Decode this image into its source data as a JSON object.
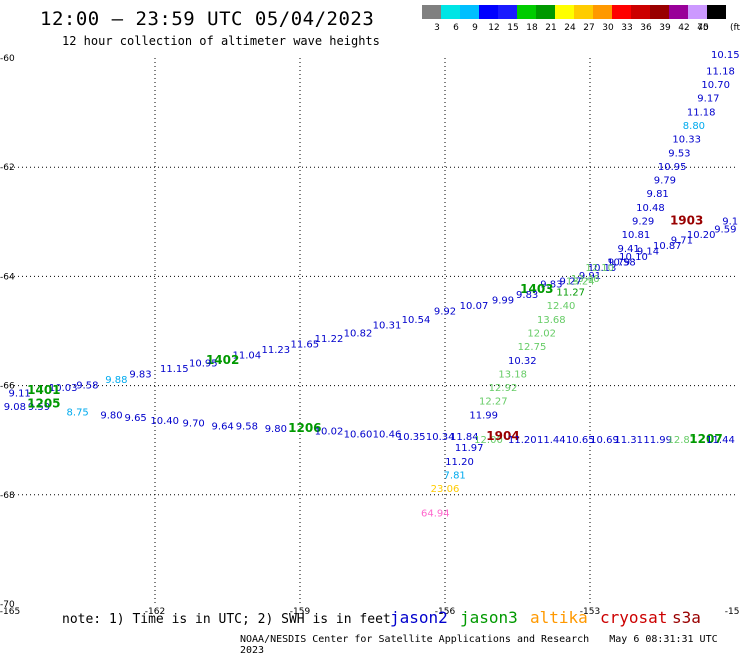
{
  "header": {
    "title": "12:00 – 23:59 UTC 05/04/2023",
    "subtitle": "12 hour collection of altimeter wave heights"
  },
  "colorbar": {
    "unit": "(ft)",
    "levels": [
      "3",
      "6",
      "9",
      "12",
      "15",
      "18",
      "21",
      "24",
      "27",
      "30",
      "33",
      "36",
      "39",
      "42",
      "45",
      "70"
    ],
    "colors": [
      "#808080",
      "#00e5e5",
      "#00bfff",
      "#0000ff",
      "#1a1aff",
      "#00cc00",
      "#009900",
      "#ffff00",
      "#ffcc00",
      "#ff9900",
      "#ff0000",
      "#cc0000",
      "#990000",
      "#990099",
      "#cc99ff",
      "#000000"
    ]
  },
  "footer": {
    "note": "note: 1) Time is in UTC; 2) SWH is in feet",
    "missions": [
      {
        "name": "jason2",
        "color": "#0000cc"
      },
      {
        "name": "jason3",
        "color": "#009900"
      },
      {
        "name": "altika",
        "color": "#ff9900"
      },
      {
        "name": "cryosat",
        "color": "#cc0000"
      },
      {
        "name": "s3a",
        "color": "#990000"
      }
    ],
    "credit": "NOAA/NESDIS Center for Satellite Applications and Research",
    "timestamp": "May  6 08:31:31 UTC 2023"
  },
  "chart_data": {
    "type": "scatter",
    "xlim": [
      -165,
      -150
    ],
    "ylim": [
      -70,
      -60
    ],
    "x_ticks": [
      "-165",
      "-162",
      "-159",
      "-156",
      "-153",
      "-150"
    ],
    "y_ticks": [
      "-60",
      "-62",
      "-64",
      "-66",
      "-68",
      "-70"
    ],
    "grid": true,
    "points": [
      {
        "x": -150.2,
        "y": -60.0,
        "label": "10.15",
        "color": "#0000cc"
      },
      {
        "x": -150.3,
        "y": -60.3,
        "label": "11.18",
        "color": "#0000cc"
      },
      {
        "x": -150.4,
        "y": -60.55,
        "label": "10.70",
        "color": "#0000cc"
      },
      {
        "x": -150.55,
        "y": -60.8,
        "label": "9.17",
        "color": "#0000cc"
      },
      {
        "x": -150.7,
        "y": -61.05,
        "label": "11.18",
        "color": "#0000cc"
      },
      {
        "x": -150.85,
        "y": -61.3,
        "label": "8.80",
        "color": "#00aaee"
      },
      {
        "x": -151.0,
        "y": -61.55,
        "label": "10.33",
        "color": "#0000cc"
      },
      {
        "x": -151.15,
        "y": -61.8,
        "label": "9.53",
        "color": "#0000cc"
      },
      {
        "x": -151.3,
        "y": -62.05,
        "label": "10.95",
        "color": "#0000cc"
      },
      {
        "x": -151.45,
        "y": -62.3,
        "label": "9.79",
        "color": "#0000cc"
      },
      {
        "x": -151.6,
        "y": -62.55,
        "label": "9.81",
        "color": "#0000cc"
      },
      {
        "x": -151.75,
        "y": -62.8,
        "label": "10.48",
        "color": "#0000cc"
      },
      {
        "x": -151.9,
        "y": -63.05,
        "label": "9.29",
        "color": "#0000cc"
      },
      {
        "x": -151.0,
        "y": -63.05,
        "label": "1903",
        "color": "#990000",
        "tag": true
      },
      {
        "x": -152.05,
        "y": -63.3,
        "label": "10.81",
        "color": "#0000cc"
      },
      {
        "x": -152.2,
        "y": -63.55,
        "label": "9.41",
        "color": "#0000cc"
      },
      {
        "x": -152.35,
        "y": -63.8,
        "label": "10.58",
        "color": "#0000cc"
      },
      {
        "x": -150.1,
        "y": -63.05,
        "label": "9.1",
        "color": "#0000cc"
      },
      {
        "x": -150.2,
        "y": -63.2,
        "label": "9.59",
        "color": "#0000cc"
      },
      {
        "x": -150.7,
        "y": -63.3,
        "label": "10.20",
        "color": "#0000cc"
      },
      {
        "x": -151.1,
        "y": -63.4,
        "label": "9.71",
        "color": "#0000cc"
      },
      {
        "x": -151.4,
        "y": -63.5,
        "label": "10.87",
        "color": "#0000cc"
      },
      {
        "x": -151.8,
        "y": -63.6,
        "label": "9.14",
        "color": "#0000cc"
      },
      {
        "x": -152.1,
        "y": -63.7,
        "label": "10.10",
        "color": "#0000cc"
      },
      {
        "x": -152.4,
        "y": -63.8,
        "label": "9.79",
        "color": "#0000cc"
      },
      {
        "x": -152.75,
        "y": -63.9,
        "label": "10.13",
        "color": "#0000cc"
      },
      {
        "x": -153.0,
        "y": -64.05,
        "label": "9.91",
        "color": "#0000cc"
      },
      {
        "x": -153.1,
        "y": -64.1,
        "label": "13.46",
        "color": "#66cc66"
      },
      {
        "x": -153.4,
        "y": -64.15,
        "label": "9.27",
        "color": "#0000cc"
      },
      {
        "x": -153.8,
        "y": -64.2,
        "label": "9.83",
        "color": "#0000cc"
      },
      {
        "x": -154.1,
        "y": -64.3,
        "label": "1403",
        "color": "#009900",
        "tag": true
      },
      {
        "x": -154.3,
        "y": -64.4,
        "label": "9.83",
        "color": "#0000cc"
      },
      {
        "x": -154.8,
        "y": -64.5,
        "label": "9.99",
        "color": "#0000cc"
      },
      {
        "x": -155.4,
        "y": -64.6,
        "label": "10.07",
        "color": "#0000cc"
      },
      {
        "x": -156.0,
        "y": -64.7,
        "label": "9.92",
        "color": "#0000cc"
      },
      {
        "x": -156.6,
        "y": -64.85,
        "label": "10.54",
        "color": "#0000cc"
      },
      {
        "x": -157.2,
        "y": -64.95,
        "label": "10.31",
        "color": "#0000cc"
      },
      {
        "x": -157.8,
        "y": -65.1,
        "label": "10.82",
        "color": "#0000cc"
      },
      {
        "x": -158.4,
        "y": -65.2,
        "label": "11.22",
        "color": "#0000cc"
      },
      {
        "x": -158.9,
        "y": -65.3,
        "label": "11.65",
        "color": "#0000cc"
      },
      {
        "x": -159.5,
        "y": -65.4,
        "label": "11.23",
        "color": "#0000cc"
      },
      {
        "x": -160.1,
        "y": -65.5,
        "label": "11.04",
        "color": "#0000cc"
      },
      {
        "x": -160.6,
        "y": -65.6,
        "label": "1402",
        "color": "#009900",
        "tag": true
      },
      {
        "x": -161.0,
        "y": -65.65,
        "label": "10.95",
        "color": "#0000cc"
      },
      {
        "x": -161.6,
        "y": -65.75,
        "label": "11.15",
        "color": "#0000cc"
      },
      {
        "x": -162.3,
        "y": -65.85,
        "label": "9.83",
        "color": "#0000cc"
      },
      {
        "x": -162.8,
        "y": -65.95,
        "label": "9.88",
        "color": "#00aaee"
      },
      {
        "x": -163.4,
        "y": -66.05,
        "label": "9.58",
        "color": "#0000cc"
      },
      {
        "x": -163.9,
        "y": -66.1,
        "label": "10.03",
        "color": "#0000cc"
      },
      {
        "x": -164.3,
        "y": -66.15,
        "label": "1401",
        "color": "#009900",
        "tag": true
      },
      {
        "x": -164.8,
        "y": -66.2,
        "label": "9.11",
        "color": "#0000cc"
      },
      {
        "x": -164.9,
        "y": -66.45,
        "label": "9.08",
        "color": "#0000cc"
      },
      {
        "x": -164.4,
        "y": -66.45,
        "label": "9.59",
        "color": "#0000cc"
      },
      {
        "x": -164.3,
        "y": -66.4,
        "label": "1205",
        "color": "#009900",
        "tag": true
      },
      {
        "x": -163.6,
        "y": -66.55,
        "label": "8.75",
        "color": "#00aaee"
      },
      {
        "x": -162.9,
        "y": -66.6,
        "label": "9.80",
        "color": "#0000cc"
      },
      {
        "x": -162.4,
        "y": -66.65,
        "label": "9.65",
        "color": "#0000cc"
      },
      {
        "x": -161.8,
        "y": -66.7,
        "label": "10.40",
        "color": "#0000cc"
      },
      {
        "x": -161.2,
        "y": -66.75,
        "label": "9.70",
        "color": "#0000cc"
      },
      {
        "x": -160.6,
        "y": -66.8,
        "label": "9.64",
        "color": "#0000cc"
      },
      {
        "x": -160.1,
        "y": -66.8,
        "label": "9.58",
        "color": "#0000cc"
      },
      {
        "x": -159.5,
        "y": -66.85,
        "label": "9.80",
        "color": "#0000cc"
      },
      {
        "x": -158.9,
        "y": -66.85,
        "label": "1206",
        "color": "#009900",
        "tag": true
      },
      {
        "x": -158.4,
        "y": -66.9,
        "label": "10.02",
        "color": "#0000cc"
      },
      {
        "x": -157.8,
        "y": -66.95,
        "label": "10.60",
        "color": "#0000cc"
      },
      {
        "x": -157.2,
        "y": -66.95,
        "label": "10.46",
        "color": "#0000cc"
      },
      {
        "x": -156.7,
        "y": -67.0,
        "label": "10.35",
        "color": "#0000cc"
      },
      {
        "x": -156.1,
        "y": -67.0,
        "label": "10.34",
        "color": "#0000cc"
      },
      {
        "x": -155.6,
        "y": -67.0,
        "label": "11.84",
        "color": "#0000cc"
      },
      {
        "x": -155.1,
        "y": -67.05,
        "label": "12.00",
        "color": "#66cc66"
      },
      {
        "x": -154.8,
        "y": -67.0,
        "label": "1904",
        "color": "#990000",
        "tag": true
      },
      {
        "x": -154.4,
        "y": -67.05,
        "label": "11.20",
        "color": "#0000cc"
      },
      {
        "x": -153.8,
        "y": -67.05,
        "label": "11.44",
        "color": "#0000cc"
      },
      {
        "x": -153.2,
        "y": -67.05,
        "label": "10.65",
        "color": "#0000cc"
      },
      {
        "x": -152.7,
        "y": -67.05,
        "label": "10.69",
        "color": "#0000cc"
      },
      {
        "x": -152.2,
        "y": -67.05,
        "label": "11.31",
        "color": "#0000cc"
      },
      {
        "x": -151.6,
        "y": -67.05,
        "label": "11.99",
        "color": "#0000cc"
      },
      {
        "x": -151.1,
        "y": -67.05,
        "label": "12.87",
        "color": "#66cc66"
      },
      {
        "x": -150.6,
        "y": -67.05,
        "label": "1207",
        "color": "#009900",
        "tag": true
      },
      {
        "x": -150.3,
        "y": -67.05,
        "label": "11.44",
        "color": "#0000cc"
      },
      {
        "x": -152.8,
        "y": -63.9,
        "label": "12.10",
        "color": "#66cc66"
      },
      {
        "x": -153.2,
        "y": -64.15,
        "label": "13.24",
        "color": "#66cc66"
      },
      {
        "x": -153.4,
        "y": -64.35,
        "label": "11.27",
        "color": "#009900"
      },
      {
        "x": -153.6,
        "y": -64.6,
        "label": "12.40",
        "color": "#66cc66"
      },
      {
        "x": -153.8,
        "y": -64.85,
        "label": "13.68",
        "color": "#66cc66"
      },
      {
        "x": -154.0,
        "y": -65.1,
        "label": "12.02",
        "color": "#66cc66"
      },
      {
        "x": -154.2,
        "y": -65.35,
        "label": "12.75",
        "color": "#66cc66"
      },
      {
        "x": -154.4,
        "y": -65.6,
        "label": "10.32",
        "color": "#0000cc"
      },
      {
        "x": -154.6,
        "y": -65.85,
        "label": "13.18",
        "color": "#66cc66"
      },
      {
        "x": -154.8,
        "y": -66.1,
        "label": "12.92",
        "color": "#66cc66"
      },
      {
        "x": -155.0,
        "y": -66.35,
        "label": "12.27",
        "color": "#66cc66"
      },
      {
        "x": -155.2,
        "y": -66.6,
        "label": "11.99",
        "color": "#0000cc"
      },
      {
        "x": -155.5,
        "y": -67.2,
        "label": "11.97",
        "color": "#0000cc"
      },
      {
        "x": -155.7,
        "y": -67.45,
        "label": "11.20",
        "color": "#0000cc"
      },
      {
        "x": -155.8,
        "y": -67.7,
        "label": "7.81",
        "color": "#00aaee"
      },
      {
        "x": -156.0,
        "y": -67.95,
        "label": "23.06",
        "color": "#ffcc00"
      },
      {
        "x": -156.2,
        "y": -68.4,
        "label": "64.94",
        "color": "#ff66cc"
      }
    ]
  }
}
